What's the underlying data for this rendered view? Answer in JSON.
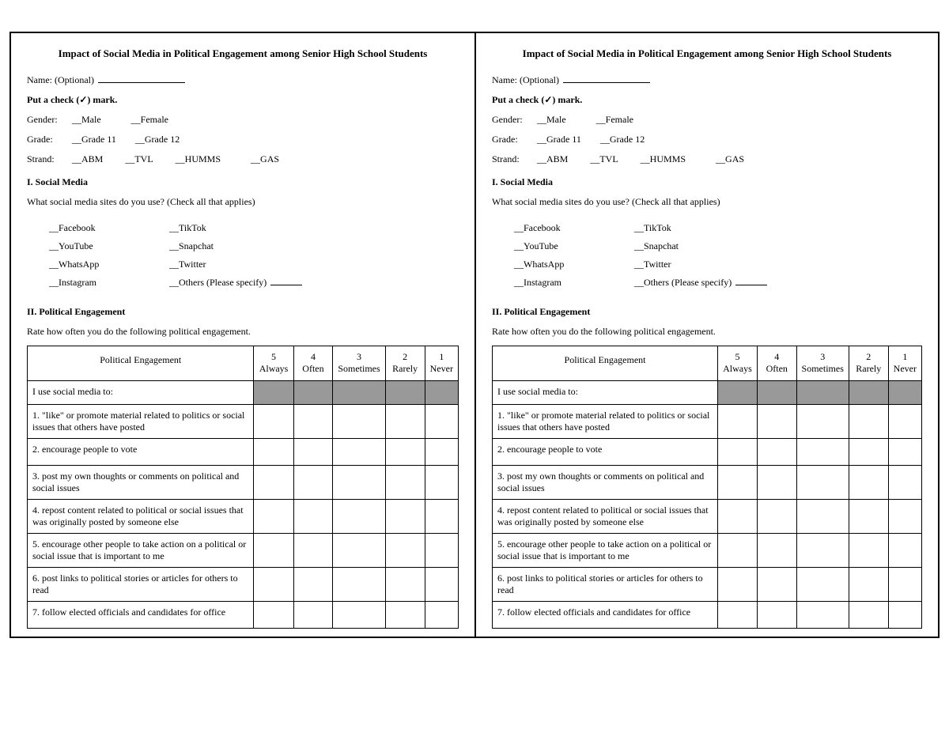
{
  "title": "Impact of Social Media in Political Engagement among Senior High School Students",
  "name_label": "Name: (Optional)",
  "check_instr": "Put a check (✓) mark.",
  "gender": {
    "label": "Gender:",
    "opts": [
      "Male",
      "Female"
    ]
  },
  "grade": {
    "label": "Grade:",
    "opts": [
      "Grade 11",
      "Grade 12"
    ]
  },
  "strand": {
    "label": "Strand:",
    "opts": [
      "ABM",
      "TVL",
      "HUMMS",
      "GAS"
    ]
  },
  "section1": {
    "heading": "I. Social Media",
    "question": "What social media sites do you use? (Check all that applies)",
    "colA": [
      "Facebook",
      "YouTube",
      "WhatsApp",
      "Instagram"
    ],
    "colB": [
      "TikTok",
      "Snapchat",
      "Twitter"
    ],
    "others": "Others (Please specify)"
  },
  "section2": {
    "heading": "II. Political Engagement",
    "instr": "Rate how often you do the following political engagement.",
    "col_header": "Political Engagement",
    "scale": [
      {
        "n": "5",
        "w": "Always"
      },
      {
        "n": "4",
        "w": "Often"
      },
      {
        "n": "3",
        "w": "Sometimes"
      },
      {
        "n": "2",
        "w": "Rarely"
      },
      {
        "n": "1",
        "w": "Never"
      }
    ],
    "lead": "I use social media to:",
    "rows": [
      "1. \"like\" or promote material related to politics or social issues that others have posted",
      "2. encourage people to vote",
      "3. post my own thoughts or comments on political and social issues",
      "4. repost content related to political or social issues that was originally posted by someone else",
      "5. encourage other people to take action on a political or social issue that is important to me",
      "6. post links to political stories or articles for others to read",
      "7. follow elected officials and candidates for office"
    ]
  },
  "colors": {
    "shaded_bg": "#999999",
    "border": "#000000",
    "text": "#000000",
    "bg": "#ffffff"
  }
}
